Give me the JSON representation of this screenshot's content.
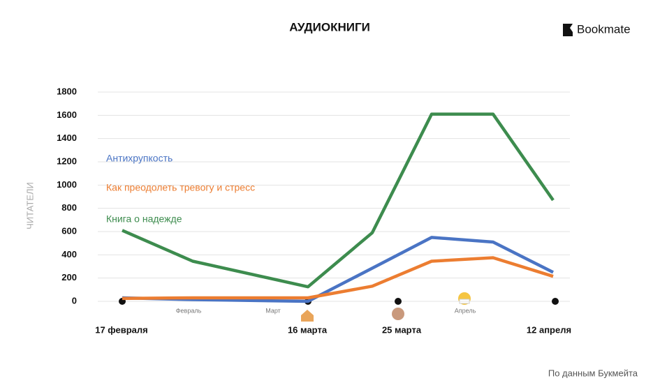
{
  "chart_data": {
    "type": "line",
    "title": "АУДИОКНИГИ",
    "logo": "Bookmate",
    "source": "По данным Букмейта",
    "y_label": "ЧИТАТЕЛИ",
    "categories": [
      null,
      null,
      null,
      null,
      null,
      null,
      null
    ],
    "date_labels": [
      "17 февраля",
      "16 марта",
      "25 марта",
      "12 апреля"
    ],
    "month_labels": [
      "Февраль",
      "Март",
      "Апрель"
    ],
    "series": [
      {
        "name": "Антихрупкость",
        "color": "#4a74c4",
        "values": [
          30,
          15,
          0,
          285,
          550,
          510,
          250
        ]
      },
      {
        "name": "Как преодолеть тревогу и стресс",
        "color": "#ec7d31",
        "values": [
          25,
          30,
          30,
          130,
          345,
          375,
          215
        ]
      },
      {
        "name": "Книга о надежде",
        "color": "#3d8c4e",
        "values": [
          610,
          345,
          125,
          590,
          1610,
          1610,
          870
        ]
      }
    ],
    "ylim": [
      0,
      1800
    ],
    "yticks": [
      0,
      200,
      400,
      600,
      800,
      1000,
      1200,
      1400,
      1600,
      1800
    ],
    "grid": true
  }
}
